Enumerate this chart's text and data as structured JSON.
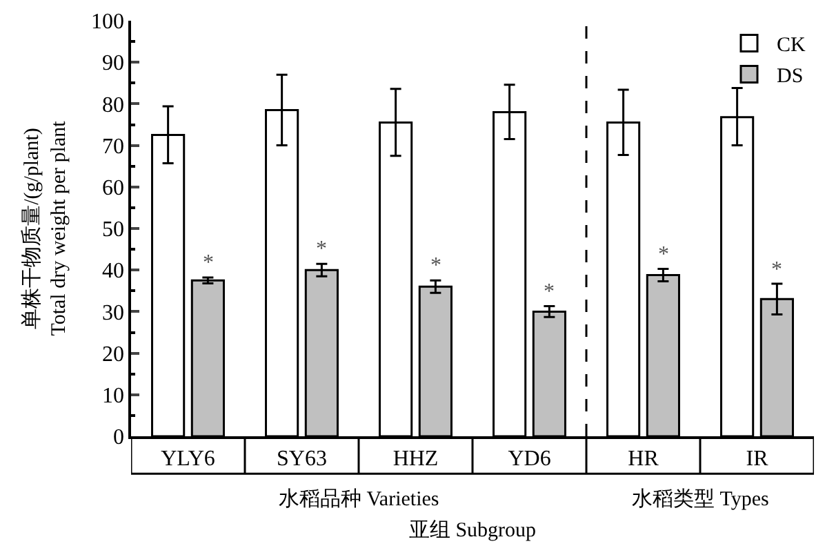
{
  "chart_data": {
    "type": "bar",
    "xlabel": "亚组 Subgroup",
    "ylabel": "单株干物质量/(g/plant)\nTotal dry weight per plant",
    "categories": [
      "YLY6",
      "SY63",
      "HHZ",
      "YD6",
      "HR",
      "IR"
    ],
    "series": [
      {
        "name": "CK",
        "color": "#ffffff",
        "values": [
          72.5,
          78.5,
          75.5,
          78,
          75.5,
          76.8
        ],
        "errors": [
          [
            65.7,
            79.4
          ],
          [
            70,
            87
          ],
          [
            67.5,
            83.6
          ],
          [
            71.5,
            84.6
          ],
          [
            67.7,
            83.4
          ],
          [
            70,
            83.8
          ]
        ]
      },
      {
        "name": "DS",
        "color": "#c0c0c0",
        "values": [
          37.5,
          40,
          36,
          30,
          38.8,
          33
        ],
        "errors": [
          [
            36.8,
            38.2
          ],
          [
            38.5,
            41.5
          ],
          [
            34.5,
            37.5
          ],
          [
            28.7,
            31.3
          ],
          [
            37.3,
            40.3
          ],
          [
            29.3,
            36.7
          ]
        ]
      }
    ],
    "ylim": [
      0,
      100
    ],
    "yticks": [
      0,
      10,
      20,
      30,
      40,
      50,
      60,
      70,
      80,
      90,
      100
    ],
    "annotations": [
      {
        "text": "*",
        "x": "YLY6",
        "y": 38.2
      },
      {
        "text": "*",
        "x": "SY63",
        "y": 41.5
      },
      {
        "text": "*",
        "x": "HHZ",
        "y": 37.5
      },
      {
        "text": "*",
        "x": "YD6",
        "y": 31.3
      },
      {
        "text": "*",
        "x": "HR",
        "y": 40.3
      },
      {
        "text": "*",
        "x": "IR",
        "y": 36.7
      },
      "水稻品种 Varieties",
      "水稻类型 Types"
    ],
    "legend": "top right"
  }
}
